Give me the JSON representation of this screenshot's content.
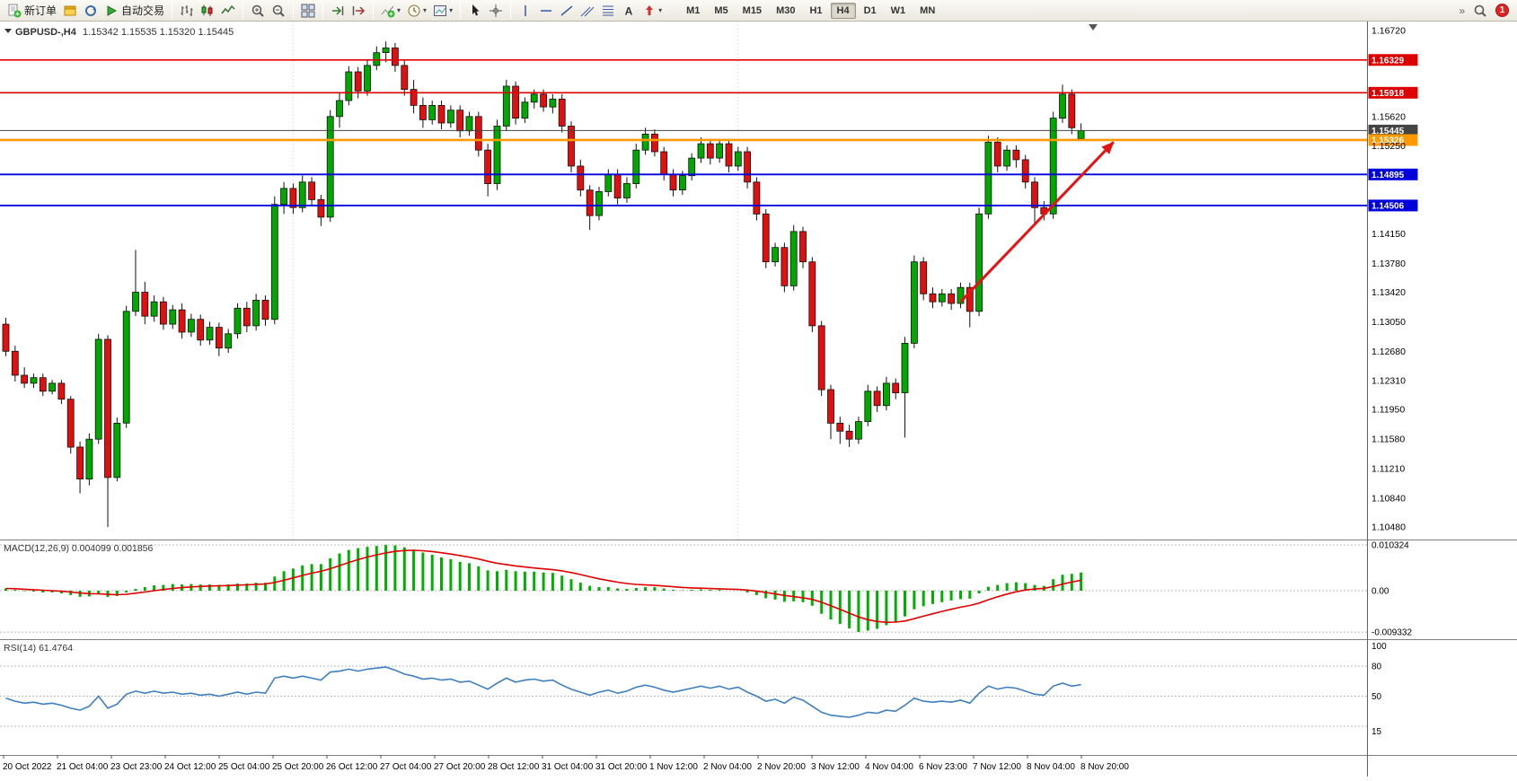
{
  "toolbar": {
    "groups": [
      [
        {
          "name": "new-order-button",
          "icon": "new-order",
          "label": "新订单"
        },
        {
          "name": "metaeditor-button",
          "icon": "metaeditor"
        },
        {
          "name": "refresh-button",
          "icon": "refresh"
        },
        {
          "name": "autotrading-button",
          "icon": "autotrading",
          "label": "自动交易"
        }
      ],
      [
        {
          "name": "bar-chart-button",
          "icon": "bars"
        },
        {
          "name": "candlestick-chart-button",
          "icon": "candles"
        },
        {
          "name": "line-chart-button",
          "icon": "linechart"
        }
      ],
      [
        {
          "name": "zoom-in-button",
          "icon": "zoom-in"
        },
        {
          "name": "zoom-out-button",
          "icon": "zoom-out"
        }
      ],
      [
        {
          "name": "new-chart-button",
          "icon": "tile"
        }
      ],
      [
        {
          "name": "auto-scroll-button",
          "icon": "autoscroll"
        },
        {
          "name": "chart-shift-button",
          "icon": "shift"
        }
      ],
      [
        {
          "name": "indicators-button",
          "icon": "indicators",
          "dropdown": true
        },
        {
          "name": "periods-button",
          "icon": "clock",
          "dropdown": true
        },
        {
          "name": "templates-button",
          "icon": "template",
          "dropdown": true
        }
      ],
      [
        {
          "name": "cursor-button",
          "icon": "cursor"
        },
        {
          "name": "crosshair-button",
          "icon": "crosshair"
        }
      ],
      [
        {
          "name": "vertical-line-button",
          "icon": "vline"
        },
        {
          "name": "horizontal-line-button",
          "icon": "hline"
        },
        {
          "name": "trendline-button",
          "icon": "trendline"
        },
        {
          "name": "channel-button",
          "icon": "channel"
        },
        {
          "name": "fibonacci-button",
          "icon": "fibo"
        },
        {
          "name": "text-button",
          "icon": "textA"
        },
        {
          "name": "arrows-button",
          "icon": "arrows",
          "dropdown": true
        }
      ]
    ],
    "timeframes": [
      "M1",
      "M5",
      "M15",
      "M30",
      "H1",
      "H4",
      "D1",
      "W1",
      "MN"
    ],
    "active_timeframe": "H4",
    "overflow_chevron": "»",
    "notification_count": "1"
  },
  "chart_data": {
    "type": "candlestick",
    "title": "GBPUSD-,H4",
    "ohlc_text": "1.15342 1.15535 1.15320 1.15445",
    "price_labels": [
      "1.16720",
      "1.15620",
      "1.15250",
      "1.14150",
      "1.13780",
      "1.13420",
      "1.13050",
      "1.12680",
      "1.12310",
      "1.11950",
      "1.11580",
      "1.11210",
      "1.10840",
      "1.10480"
    ],
    "hlines": [
      {
        "price": "1.16329",
        "color": "#dd0000",
        "width": 1.6
      },
      {
        "price": "1.15918",
        "color": "#dd0000",
        "width": 1.6
      },
      {
        "price": "1.15445",
        "color": "#444444",
        "width": 1
      },
      {
        "price": "1.15326",
        "color": "#ff9900",
        "width": 2.6
      },
      {
        "price": "1.14895",
        "color": "#0000dd",
        "width": 1.8
      },
      {
        "price": "1.14506",
        "color": "#0000dd",
        "width": 1.8
      }
    ],
    "separators": [
      31,
      79
    ],
    "arrow": {
      "from_bar": 103,
      "from_price": 1.133,
      "to_bar": 119.5,
      "to_price": 1.153,
      "color": "#e81212"
    },
    "candles": [
      [
        1.1302,
        1.131,
        1.1262,
        1.1268
      ],
      [
        1.1268,
        1.1275,
        1.123,
        1.1238
      ],
      [
        1.1238,
        1.1248,
        1.1222,
        1.1228
      ],
      [
        1.1228,
        1.124,
        1.1222,
        1.1235
      ],
      [
        1.1235,
        1.124,
        1.1212,
        1.1218
      ],
      [
        1.1218,
        1.1232,
        1.1214,
        1.1228
      ],
      [
        1.1228,
        1.1232,
        1.1202,
        1.1208
      ],
      [
        1.1208,
        1.1212,
        1.114,
        1.1148
      ],
      [
        1.1148,
        1.1155,
        1.109,
        1.1108
      ],
      [
        1.1108,
        1.1165,
        1.11,
        1.1158
      ],
      [
        1.1158,
        1.129,
        1.1152,
        1.1283
      ],
      [
        1.1283,
        1.1288,
        1.1048,
        1.111
      ],
      [
        1.111,
        1.1185,
        1.1105,
        1.1178
      ],
      [
        1.1178,
        1.1325,
        1.1172,
        1.1318
      ],
      [
        1.1318,
        1.1395,
        1.1312,
        1.1342
      ],
      [
        1.1342,
        1.1355,
        1.1302,
        1.1312
      ],
      [
        1.1312,
        1.1338,
        1.1305,
        1.133
      ],
      [
        1.133,
        1.1336,
        1.1295,
        1.1302
      ],
      [
        1.1302,
        1.1326,
        1.1296,
        1.132
      ],
      [
        1.132,
        1.1328,
        1.1284,
        1.1292
      ],
      [
        1.1292,
        1.1315,
        1.1286,
        1.1308
      ],
      [
        1.1308,
        1.1314,
        1.1275,
        1.1282
      ],
      [
        1.1282,
        1.1305,
        1.1276,
        1.1298
      ],
      [
        1.1298,
        1.1304,
        1.1262,
        1.1272
      ],
      [
        1.1272,
        1.1296,
        1.1266,
        1.129
      ],
      [
        1.129,
        1.1328,
        1.1284,
        1.1322
      ],
      [
        1.1322,
        1.133,
        1.1292,
        1.13
      ],
      [
        1.13,
        1.134,
        1.1294,
        1.1332
      ],
      [
        1.1332,
        1.1338,
        1.13,
        1.1308
      ],
      [
        1.1308,
        1.1462,
        1.1302,
        1.1452
      ],
      [
        1.1452,
        1.148,
        1.144,
        1.1472
      ],
      [
        1.1472,
        1.1478,
        1.144,
        1.1448
      ],
      [
        1.1448,
        1.1488,
        1.1442,
        1.148
      ],
      [
        1.148,
        1.1486,
        1.145,
        1.1458
      ],
      [
        1.1458,
        1.1464,
        1.1425,
        1.1436
      ],
      [
        1.1436,
        1.157,
        1.143,
        1.1562
      ],
      [
        1.1562,
        1.1592,
        1.1548,
        1.1582
      ],
      [
        1.1582,
        1.1625,
        1.1576,
        1.1618
      ],
      [
        1.1618,
        1.1624,
        1.1585,
        1.1594
      ],
      [
        1.1594,
        1.1634,
        1.1588,
        1.1626
      ],
      [
        1.1626,
        1.165,
        1.162,
        1.1642
      ],
      [
        1.1642,
        1.1656,
        1.163,
        1.1648
      ],
      [
        1.1648,
        1.1654,
        1.1618,
        1.1626
      ],
      [
        1.1626,
        1.1632,
        1.1588,
        1.1596
      ],
      [
        1.1596,
        1.1608,
        1.1566,
        1.1576
      ],
      [
        1.1576,
        1.1586,
        1.1548,
        1.1558
      ],
      [
        1.1558,
        1.1582,
        1.1552,
        1.1576
      ],
      [
        1.1576,
        1.1582,
        1.1546,
        1.1554
      ],
      [
        1.1554,
        1.1576,
        1.1548,
        1.157
      ],
      [
        1.157,
        1.1576,
        1.1536,
        1.1544
      ],
      [
        1.1544,
        1.1568,
        1.1538,
        1.1562
      ],
      [
        1.1562,
        1.1568,
        1.1512,
        1.152
      ],
      [
        1.152,
        1.1528,
        1.1462,
        1.1478
      ],
      [
        1.1478,
        1.1558,
        1.147,
        1.155
      ],
      [
        1.155,
        1.1608,
        1.1544,
        1.16
      ],
      [
        1.16,
        1.1606,
        1.1552,
        1.156
      ],
      [
        1.156,
        1.1586,
        1.1554,
        1.158
      ],
      [
        1.158,
        1.1596,
        1.1572,
        1.159
      ],
      [
        1.159,
        1.1596,
        1.1568,
        1.1574
      ],
      [
        1.1574,
        1.159,
        1.1566,
        1.1584
      ],
      [
        1.1584,
        1.159,
        1.1542,
        1.155
      ],
      [
        1.155,
        1.1556,
        1.1492,
        1.15
      ],
      [
        1.15,
        1.1508,
        1.1462,
        1.147
      ],
      [
        1.147,
        1.1476,
        1.142,
        1.1438
      ],
      [
        1.1438,
        1.1474,
        1.1432,
        1.1468
      ],
      [
        1.1468,
        1.1496,
        1.1462,
        1.149
      ],
      [
        1.149,
        1.1496,
        1.1452,
        1.146
      ],
      [
        1.146,
        1.1486,
        1.1454,
        1.1478
      ],
      [
        1.1478,
        1.1528,
        1.1472,
        1.152
      ],
      [
        1.152,
        1.1548,
        1.1514,
        1.154
      ],
      [
        1.154,
        1.1546,
        1.1512,
        1.1518
      ],
      [
        1.1518,
        1.1524,
        1.1482,
        1.149
      ],
      [
        1.149,
        1.1496,
        1.1462,
        1.147
      ],
      [
        1.147,
        1.1494,
        1.1464,
        1.1488
      ],
      [
        1.1488,
        1.1516,
        1.1482,
        1.151
      ],
      [
        1.151,
        1.1536,
        1.1504,
        1.1528
      ],
      [
        1.1528,
        1.1534,
        1.1502,
        1.151
      ],
      [
        1.151,
        1.1534,
        1.1504,
        1.1528
      ],
      [
        1.1528,
        1.1534,
        1.1492,
        1.15
      ],
      [
        1.15,
        1.1524,
        1.1494,
        1.1518
      ],
      [
        1.1518,
        1.1524,
        1.1472,
        1.148
      ],
      [
        1.148,
        1.1486,
        1.1432,
        1.144
      ],
      [
        1.144,
        1.1446,
        1.1372,
        1.138
      ],
      [
        1.138,
        1.1404,
        1.1374,
        1.1398
      ],
      [
        1.1398,
        1.1404,
        1.1342,
        1.135
      ],
      [
        1.135,
        1.1426,
        1.1344,
        1.1418
      ],
      [
        1.1418,
        1.1424,
        1.1372,
        1.138
      ],
      [
        1.138,
        1.1386,
        1.1292,
        1.13
      ],
      [
        1.13,
        1.1306,
        1.1212,
        1.122
      ],
      [
        1.122,
        1.1226,
        1.1158,
        1.1178
      ],
      [
        1.1178,
        1.1186,
        1.1152,
        1.1168
      ],
      [
        1.1168,
        1.1176,
        1.1148,
        1.1158
      ],
      [
        1.1158,
        1.1186,
        1.1152,
        1.118
      ],
      [
        1.118,
        1.1226,
        1.1174,
        1.1218
      ],
      [
        1.1218,
        1.1224,
        1.1192,
        1.12
      ],
      [
        1.12,
        1.1236,
        1.1194,
        1.1228
      ],
      [
        1.1228,
        1.1234,
        1.1208,
        1.1216
      ],
      [
        1.1216,
        1.1286,
        1.116,
        1.1278
      ],
      [
        1.1278,
        1.1388,
        1.1272,
        1.138
      ],
      [
        1.138,
        1.1386,
        1.1332,
        1.134
      ],
      [
        1.134,
        1.1348,
        1.1322,
        1.133
      ],
      [
        1.133,
        1.1346,
        1.1324,
        1.134
      ],
      [
        1.134,
        1.1346,
        1.132,
        1.1328
      ],
      [
        1.1328,
        1.1354,
        1.1322,
        1.1348
      ],
      [
        1.1348,
        1.1354,
        1.1298,
        1.1318
      ],
      [
        1.1318,
        1.1448,
        1.1312,
        1.144
      ],
      [
        1.144,
        1.1538,
        1.1434,
        1.153
      ],
      [
        1.153,
        1.1536,
        1.1492,
        1.15
      ],
      [
        1.15,
        1.1526,
        1.1494,
        1.152
      ],
      [
        1.152,
        1.1526,
        1.1498,
        1.1508
      ],
      [
        1.1508,
        1.1514,
        1.1472,
        1.148
      ],
      [
        1.148,
        1.1486,
        1.1428,
        1.1448
      ],
      [
        1.1448,
        1.1456,
        1.1432,
        1.144
      ],
      [
        1.144,
        1.1568,
        1.1434,
        1.156
      ],
      [
        1.156,
        1.1602,
        1.1554,
        1.159
      ],
      [
        1.159,
        1.1596,
        1.154,
        1.1548
      ],
      [
        1.15342,
        1.15535,
        1.1532,
        1.15445
      ]
    ],
    "macd": {
      "name": "MACD(12,26,9)",
      "value": "0.004099",
      "signal": "0.001856",
      "scale": [
        "0.010324",
        "0.00",
        "-0.009332"
      ],
      "values": [
        0.0005,
        0.0002,
        -0.0001,
        -0.0002,
        -0.0004,
        -0.0004,
        -0.0006,
        -0.001,
        -0.0014,
        -0.0013,
        -0.0008,
        -0.0014,
        -0.0012,
        -0.0004,
        0.0004,
        0.0008,
        0.0012,
        0.0013,
        0.0015,
        0.0014,
        0.0015,
        0.0014,
        0.0014,
        0.0013,
        0.0014,
        0.0016,
        0.0016,
        0.0018,
        0.0018,
        0.0032,
        0.0044,
        0.005,
        0.0057,
        0.006,
        0.006,
        0.0073,
        0.0084,
        0.0092,
        0.0096,
        0.0099,
        0.0101,
        0.0103,
        0.0102,
        0.0098,
        0.0093,
        0.0086,
        0.0081,
        0.0075,
        0.0071,
        0.0065,
        0.0062,
        0.0055,
        0.0046,
        0.0044,
        0.0047,
        0.0044,
        0.0043,
        0.0043,
        0.0041,
        0.004,
        0.0034,
        0.0026,
        0.0018,
        0.0011,
        0.0008,
        0.0008,
        0.0005,
        0.0004,
        0.0006,
        0.0008,
        0.0008,
        0.0005,
        0.0002,
        0.0001,
        0.0002,
        0.0003,
        0.0002,
        0.0002,
        0.0,
        0.0,
        -0.0004,
        -0.001,
        -0.0017,
        -0.002,
        -0.0025,
        -0.0024,
        -0.0026,
        -0.0034,
        -0.0052,
        -0.0065,
        -0.0075,
        -0.0085,
        -0.0093,
        -0.009,
        -0.0086,
        -0.0078,
        -0.007,
        -0.0058,
        -0.0042,
        -0.0035,
        -0.003,
        -0.0026,
        -0.0022,
        -0.0019,
        -0.0018,
        -0.0006,
        0.0009,
        0.0013,
        0.0017,
        0.0019,
        0.0017,
        0.0013,
        0.0011,
        0.0026,
        0.0036,
        0.0038,
        0.0041
      ]
    },
    "rsi": {
      "name": "RSI(14)",
      "value": "61.4764",
      "levels": [
        80,
        50,
        20
      ],
      "scale_labels": [
        "100",
        "80",
        "50",
        "15"
      ],
      "values": [
        48,
        45,
        43,
        44,
        42,
        43,
        41,
        38,
        36,
        40,
        50,
        38,
        42,
        52,
        55,
        53,
        55,
        53,
        54,
        52,
        53,
        51,
        52,
        50,
        52,
        54,
        52,
        54,
        53,
        68,
        70,
        68,
        70,
        68,
        66,
        74,
        75,
        77,
        75,
        77,
        78,
        79,
        76,
        72,
        70,
        67,
        68,
        66,
        67,
        64,
        65,
        61,
        57,
        63,
        68,
        64,
        66,
        67,
        65,
        66,
        61,
        57,
        54,
        51,
        54,
        56,
        53,
        55,
        59,
        61,
        59,
        56,
        54,
        56,
        58,
        60,
        58,
        60,
        57,
        59,
        54,
        50,
        45,
        47,
        43,
        49,
        46,
        40,
        34,
        31,
        30,
        29,
        31,
        34,
        33,
        36,
        35,
        41,
        48,
        45,
        44,
        45,
        44,
        46,
        43,
        53,
        60,
        57,
        59,
        58,
        55,
        52,
        51,
        60,
        63,
        60,
        61.48
      ]
    },
    "time_labels": [
      "20 Oct 2022",
      "21 Oct 04:00",
      "23 Oct 23:00",
      "24 Oct 12:00",
      "25 Oct 04:00",
      "25 Oct 20:00",
      "26 Oct 12:00",
      "27 Oct 04:00",
      "27 Oct 20:00",
      "28 Oct 12:00",
      "31 Oct 04:00",
      "31 Oct 20:00",
      "1 Nov 12:00",
      "2 Nov 04:00",
      "2 Nov 20:00",
      "3 Nov 12:00",
      "4 Nov 04:00",
      "6 Nov 23:00",
      "7 Nov 12:00",
      "8 Nov 04:00",
      "8 Nov 20:00"
    ]
  }
}
